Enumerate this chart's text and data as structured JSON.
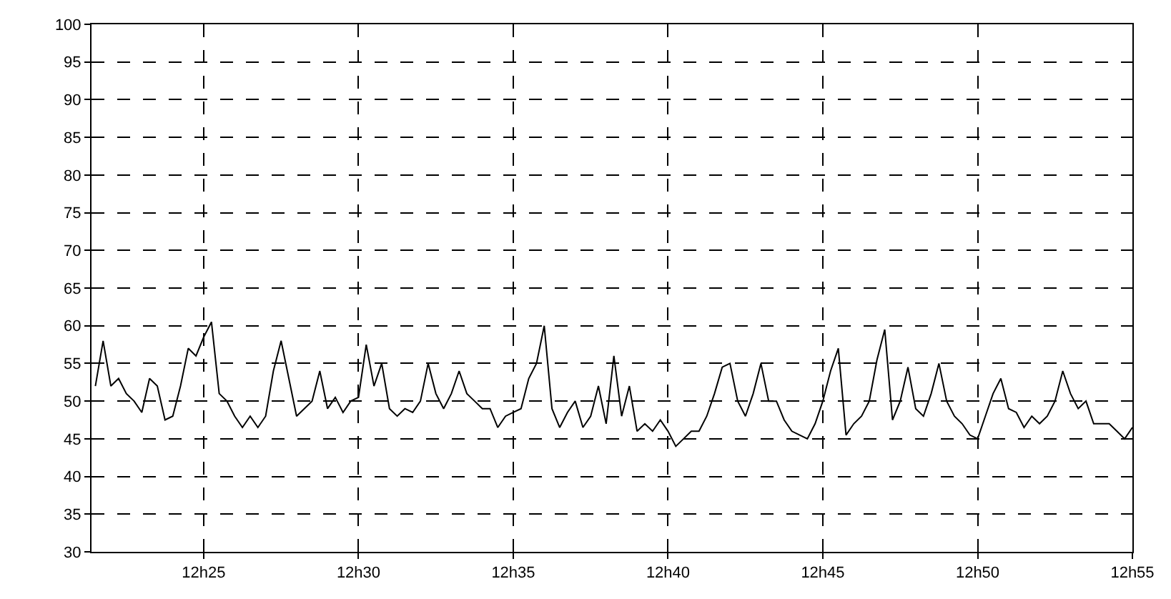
{
  "chart_data": {
    "type": "line",
    "grid": true,
    "marker": "none",
    "line_style": "solid",
    "ylim": [
      30,
      100
    ],
    "yticks": [
      30,
      35,
      40,
      45,
      50,
      55,
      60,
      65,
      70,
      75,
      80,
      85,
      90,
      95,
      100
    ],
    "categories": [
      null,
      null,
      null,
      null,
      null,
      null,
      null,
      null,
      null,
      null,
      null,
      null,
      null,
      null,
      "12h25",
      null,
      null,
      null,
      null,
      null,
      null,
      null,
      null,
      null,
      null,
      null,
      null,
      null,
      null,
      null,
      null,
      null,
      null,
      null,
      "12h30",
      null,
      null,
      null,
      null,
      null,
      null,
      null,
      null,
      null,
      null,
      null,
      null,
      null,
      null,
      null,
      null,
      null,
      null,
      null,
      "12h35",
      null,
      null,
      null,
      null,
      null,
      null,
      null,
      null,
      null,
      null,
      null,
      null,
      null,
      null,
      null,
      null,
      null,
      null,
      null,
      "12h40",
      null,
      null,
      null,
      null,
      null,
      null,
      null,
      null,
      null,
      null,
      null,
      null,
      null,
      null,
      null,
      null,
      null,
      null,
      null,
      "12h45",
      null,
      null,
      null,
      null,
      null,
      null,
      null,
      null,
      null,
      null,
      null,
      null,
      null,
      null,
      null,
      null,
      null,
      null,
      null,
      "12h50",
      null,
      null,
      null,
      null,
      null,
      null,
      null,
      null,
      null,
      null,
      null,
      null,
      null,
      null,
      null,
      null,
      null,
      null,
      null,
      "12h55"
    ],
    "series": [
      {
        "color": "#000000",
        "values": [
          52,
          58,
          52,
          53,
          51,
          50,
          48.5,
          53,
          52,
          47.5,
          48,
          52,
          57,
          56,
          58.5,
          60.5,
          51,
          50,
          48,
          46.5,
          48,
          46.5,
          48,
          54,
          58,
          53,
          48,
          49,
          50,
          54,
          49,
          50.5,
          48.5,
          50,
          50.5,
          57.5,
          52,
          55,
          49,
          48,
          49,
          48.5,
          50,
          55,
          51,
          49,
          51,
          54,
          51,
          50,
          49,
          49,
          46.5,
          48,
          48.5,
          49,
          53,
          55,
          60,
          49,
          46.5,
          48.5,
          50,
          46.5,
          48,
          52,
          47,
          56,
          48,
          52,
          46,
          47,
          46,
          47.5,
          46,
          44,
          45,
          46,
          46,
          48,
          51,
          54.5,
          55,
          50,
          48,
          51,
          55,
          50,
          50,
          47.5,
          46,
          45.5,
          45,
          47,
          50,
          54,
          57,
          45.5,
          47,
          48,
          50,
          55.5,
          59.5,
          47.5,
          50,
          54.5,
          49,
          48,
          51,
          55,
          50,
          48,
          47,
          45.5,
          45,
          48,
          51,
          53,
          49,
          48.5,
          46.5,
          48,
          47,
          48,
          50,
          54,
          51,
          49,
          50,
          47,
          47,
          47,
          46,
          45,
          46.5
        ]
      }
    ]
  }
}
